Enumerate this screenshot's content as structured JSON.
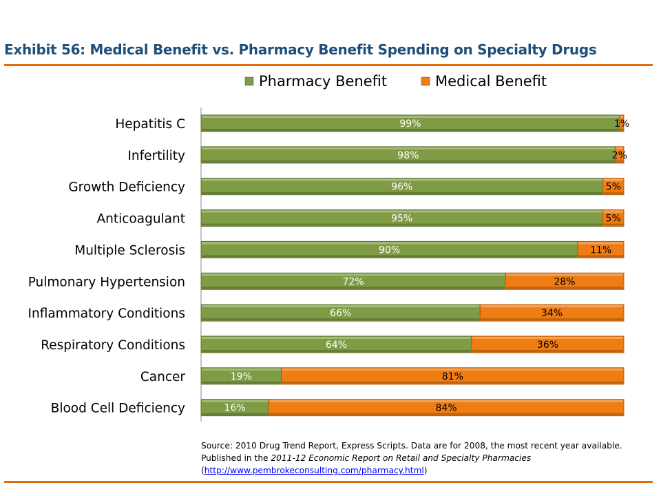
{
  "title": "Exhibit 56: Medical Benefit vs. Pharmacy Benefit Spending on Specialty Drugs",
  "source": {
    "line1": "Source: 2010 Drug Trend Report, Express Scripts. Data are for 2008, the most recent year available.",
    "line2_prefix": "Published in the ",
    "line2_italic": "2011-12 Economic Report on Retail and Specialty Pharmacies",
    "open_paren": "(",
    "link": "http://www.pembrokeconsulting.com/pharmacy.html",
    "close_paren": ")"
  },
  "colors": {
    "accent_rule": "#e36c0a",
    "title": "#1f4e79"
  },
  "chart_data": {
    "type": "bar",
    "orientation": "horizontal",
    "stacked": "100%",
    "categories": [
      "Hepatitis C",
      "Infertility",
      "Growth Deficiency",
      "Anticoagulant",
      "Multiple Sclerosis",
      "Pulmonary Hypertension",
      "Inflammatory Conditions",
      "Respiratory Conditions",
      "Cancer",
      "Blood Cell Deficiency"
    ],
    "series": [
      {
        "name": "Pharmacy Benefit",
        "color": "#7f9c45",
        "values": [
          99,
          98,
          96,
          95,
          90,
          72,
          66,
          64,
          19,
          16
        ],
        "labels": [
          "99%",
          "98%",
          "96%",
          "95%",
          "90%",
          "72%",
          "66%",
          "64%",
          "19%",
          "16%"
        ]
      },
      {
        "name": "Medical Benefit",
        "color": "#f07c14",
        "values": [
          1,
          2,
          5,
          5,
          11,
          28,
          34,
          36,
          81,
          84
        ],
        "labels": [
          "1%",
          "2%",
          "5%",
          "5%",
          "11%",
          "28%",
          "34%",
          "36%",
          "81%",
          "84%"
        ]
      }
    ],
    "legend": "top",
    "grid": false
  }
}
